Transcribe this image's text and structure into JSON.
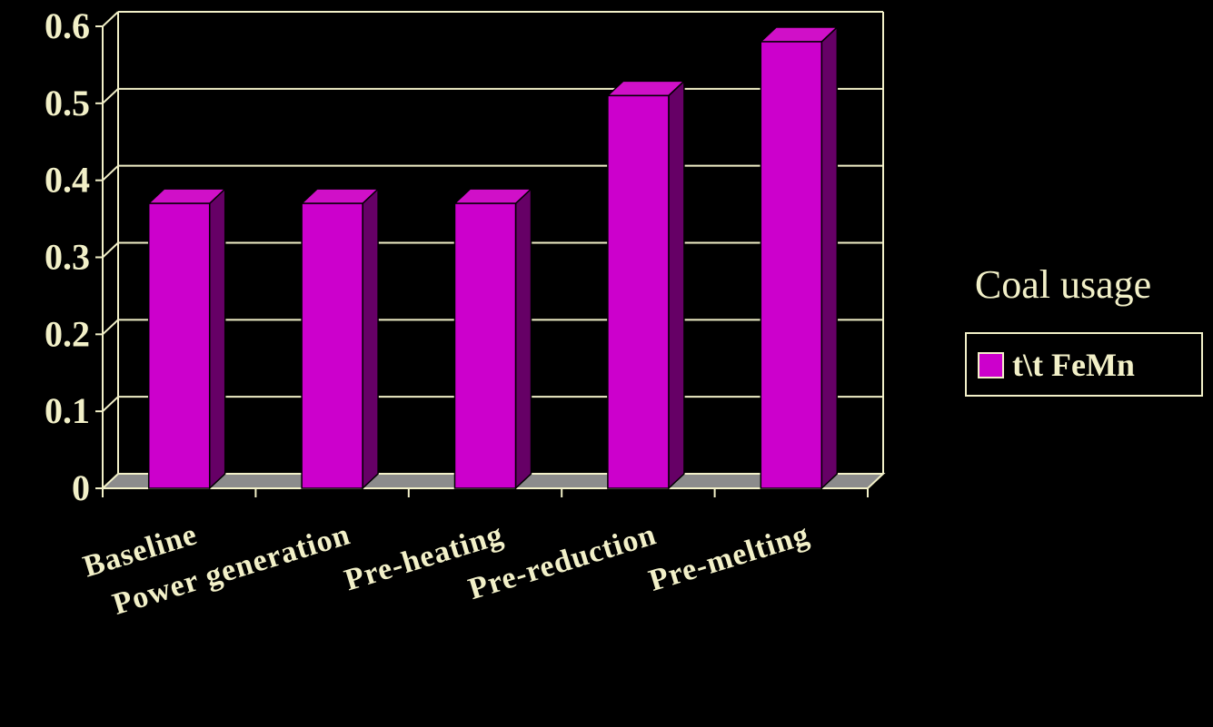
{
  "chart_data": {
    "type": "bar",
    "categories": [
      "Baseline",
      "Power generation",
      "Pre-heating",
      "Pre-reduction",
      "Pre-melting"
    ],
    "series": [
      {
        "name": "t\\t FeMn",
        "values": [
          0.37,
          0.37,
          0.37,
          0.51,
          0.58
        ]
      }
    ],
    "ylim": [
      0,
      0.6
    ],
    "yticks": [
      "0",
      "0.1",
      "0.2",
      "0.3",
      "0.4",
      "0.5",
      "0.6"
    ],
    "grid": true,
    "three_d": true,
    "legend": {
      "title": "Coal usage",
      "position": "right"
    }
  },
  "colors": {
    "background": "#000000",
    "bar_front": "#cc00cc",
    "bar_top": "#d010c8",
    "bar_side": "#660066",
    "text": "#f2f0c8",
    "grid": "#f2f0c8",
    "floor": "#8c8c8c"
  }
}
